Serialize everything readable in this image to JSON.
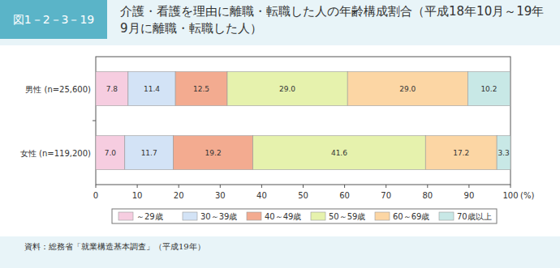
{
  "chart_data": {
    "type": "bar",
    "orientation": "horizontal",
    "stacked": true,
    "data_labels": true,
    "grid": false,
    "legend": "bottom",
    "title": "介護・看護を理由に離職・転職した人の年齢構成割合（平成18年10月～19年9月に離職・転職した人）",
    "annotations": [
      "図1－2－3－19",
      "資料：総務省「就業構造基本調査」（平成19年）"
    ],
    "xlabel": "(%)",
    "categories": [
      "男性 (n=25,600)",
      "女性 (n=119,200)"
    ],
    "xlim": [
      0,
      100
    ],
    "xticks": [
      0,
      10,
      20,
      30,
      40,
      50,
      60,
      70,
      80,
      90,
      100
    ],
    "series": [
      {
        "name": "～29歳",
        "color": "#f6cde0",
        "values": [
          7.8,
          7.0
        ],
        "value_labels": [
          "7.8",
          "7.0"
        ]
      },
      {
        "name": "30～39歳",
        "color": "#d3e3f6",
        "values": [
          11.4,
          11.7
        ],
        "value_labels": [
          "11.4",
          "11.7"
        ]
      },
      {
        "name": "40～49歳",
        "color": "#f3ab90",
        "values": [
          12.5,
          19.2
        ],
        "value_labels": [
          "12.5",
          "19.2"
        ]
      },
      {
        "name": "50～59歳",
        "color": "#e6f2ad",
        "values": [
          29.0,
          41.6
        ],
        "value_labels": [
          "29.0",
          "41.6"
        ]
      },
      {
        "name": "60～69歳",
        "color": "#fcd6a4",
        "values": [
          29.0,
          17.2
        ],
        "value_labels": [
          "29.0",
          "17.2"
        ]
      },
      {
        "name": "70歳以上",
        "color": "#c8e8e6",
        "values": [
          10.2,
          3.3
        ],
        "value_labels": [
          "10.2",
          "3.3"
        ]
      }
    ]
  }
}
